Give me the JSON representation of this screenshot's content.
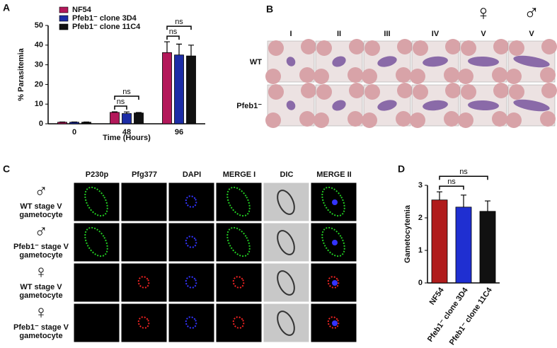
{
  "panel_labels": [
    "A",
    "B",
    "C",
    "D"
  ],
  "chart_data": [
    {
      "type": "bar",
      "ylabel": "% Parasitemia",
      "xlabel": "Time (Hours)",
      "categories": [
        "0",
        "48",
        "96"
      ],
      "series": [
        {
          "name": "NF54",
          "color": "#b3185a",
          "values": [
            0.8,
            5.8,
            36.2
          ],
          "errors": [
            0.1,
            0.3,
            5.5
          ]
        },
        {
          "name": "Pfeb1⁻ clone 3D4",
          "color": "#1d2da6",
          "values": [
            0.8,
            5.2,
            35.0
          ],
          "errors": [
            0.1,
            0.8,
            5.5
          ]
        },
        {
          "name": "Pfeb1⁻ clone 11C4",
          "color": "#111111",
          "values": [
            0.8,
            5.5,
            34.5
          ],
          "errors": [
            0.1,
            0.2,
            5.5
          ]
        }
      ],
      "ylim": [
        0,
        50
      ],
      "yticks": [
        0,
        10,
        20,
        30,
        40,
        50
      ],
      "annotations": [
        {
          "text": "ns",
          "category": 1,
          "pair": [
            0,
            1
          ]
        },
        {
          "text": "ns",
          "category": 1,
          "pair": [
            0,
            2
          ]
        },
        {
          "text": "ns",
          "category": 2,
          "pair": [
            0,
            1
          ]
        },
        {
          "text": "ns",
          "category": 2,
          "pair": [
            0,
            2
          ]
        }
      ]
    },
    {
      "type": "bar",
      "ylabel": "Gametocytemia",
      "categories": [
        "NF54",
        "Pfeb1⁻ clone 3D4",
        "Pfeb1⁻ clone 11C4"
      ],
      "values": [
        2.55,
        2.33,
        2.2
      ],
      "errors": [
        0.25,
        0.37,
        0.32
      ],
      "colors": [
        "#b01c1c",
        "#1f2fd1",
        "#111111"
      ],
      "ylim": [
        0,
        3
      ],
      "yticks": [
        0,
        1,
        2,
        3
      ],
      "annotations": [
        {
          "text": "ns",
          "pair": [
            0,
            1
          ]
        },
        {
          "text": "ns",
          "pair": [
            0,
            2
          ]
        }
      ]
    }
  ],
  "panel_b": {
    "columns": [
      "I",
      "II",
      "III",
      "IV",
      "V",
      "V"
    ],
    "sex_symbols": [
      "♀",
      "♂"
    ],
    "rows": [
      "WT",
      "Pfeb1⁻"
    ]
  },
  "panel_c": {
    "columns": [
      "P230p",
      "Pfg377",
      "DAPI",
      "MERGE I",
      "DIC",
      "MERGE II"
    ],
    "rows": [
      {
        "symbol": "♂",
        "label": [
          "WT stage V",
          "gametocyte"
        ]
      },
      {
        "symbol": "♂",
        "label": [
          "Pfeb1⁻ stage V",
          "gametocyte"
        ]
      },
      {
        "symbol": "♀",
        "label": [
          "WT stage V",
          "gametocyte"
        ]
      },
      {
        "symbol": "♀",
        "label": [
          "Pfeb1⁻ stage V",
          "gametocyte"
        ]
      }
    ]
  }
}
